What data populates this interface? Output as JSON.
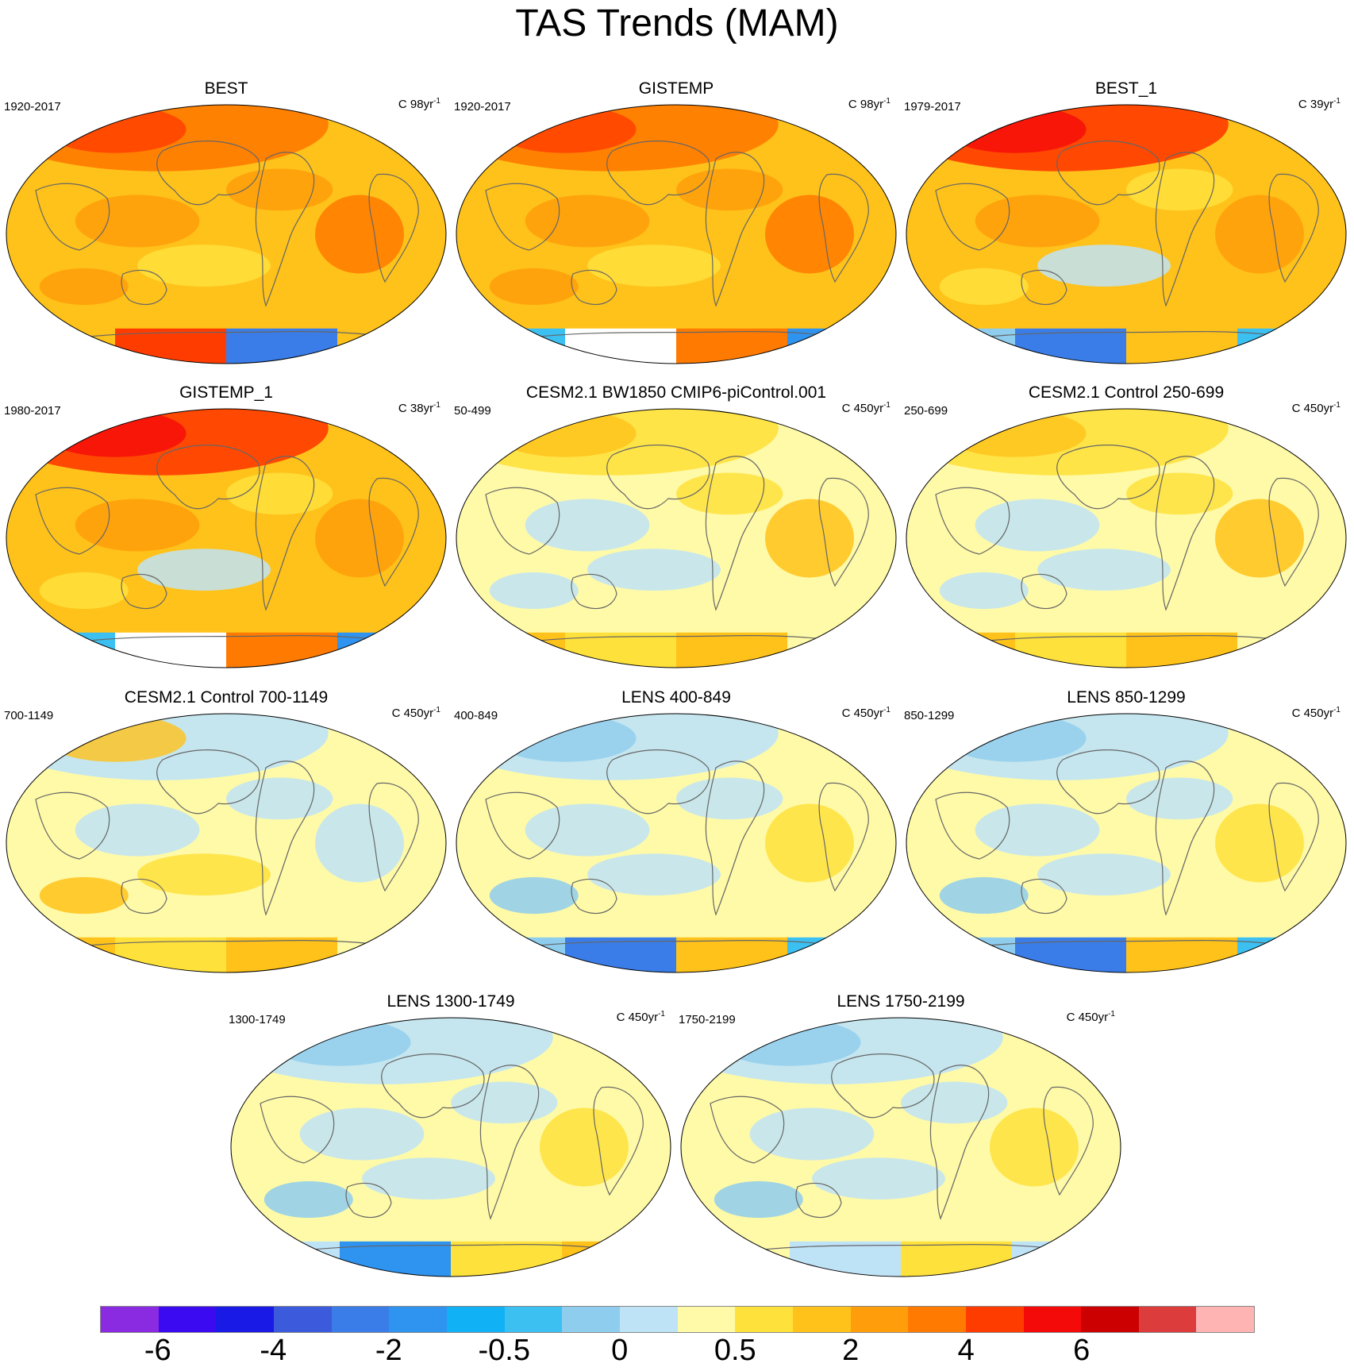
{
  "figure": {
    "title": "TAS Trends (MAM)"
  },
  "chart_data": {
    "type": "map-panels",
    "title": "TAS Trends (MAM)",
    "variable": "TAS",
    "season": "MAM",
    "panels": [
      {
        "id": "best",
        "title": "BEST",
        "period": "1920-2017",
        "units_prefix": "C 98yr",
        "units_exp": "-1",
        "pattern": "strong-warm",
        "antarctic": "mixed-hot"
      },
      {
        "id": "gistemp",
        "title": "GISTEMP",
        "period": "1920-2017",
        "units_prefix": "C 98yr",
        "units_exp": "-1",
        "pattern": "strong-warm",
        "antarctic": "cool-missing"
      },
      {
        "id": "best1",
        "title": "BEST_1",
        "period": "1979-2017",
        "units_prefix": "C 39yr",
        "units_exp": "-1",
        "pattern": "very-warm",
        "antarctic": "cool-band"
      },
      {
        "id": "gist1",
        "title": "GISTEMP_1",
        "period": "1980-2017",
        "units_prefix": "C 38yr",
        "units_exp": "-1",
        "pattern": "very-warm",
        "antarctic": "cool-missing"
      },
      {
        "id": "cesm1",
        "title": "CESM2.1 BW1850 CMIP6-piControl.001",
        "period": "50-499",
        "units_prefix": "C 450yr",
        "units_exp": "-1",
        "pattern": "neutral-warmish",
        "antarctic": "warm-band"
      },
      {
        "id": "cesm2",
        "title": "CESM2.1 Control 250-699",
        "period": "250-699",
        "units_prefix": "C 450yr",
        "units_exp": "-1",
        "pattern": "neutral-warmish",
        "antarctic": "warm-band"
      },
      {
        "id": "cesm3",
        "title": "CESM2.1 Control 700-1149",
        "period": "700-1149",
        "units_prefix": "C 450yr",
        "units_exp": "-1",
        "pattern": "neutral",
        "antarctic": "warm-band"
      },
      {
        "id": "lens1",
        "title": "LENS 400-849",
        "period": "400-849",
        "units_prefix": "C 450yr",
        "units_exp": "-1",
        "pattern": "neutral-cool",
        "antarctic": "cool-band"
      },
      {
        "id": "lens2",
        "title": "LENS 850-1299",
        "period": "850-1299",
        "units_prefix": "C 450yr",
        "units_exp": "-1",
        "pattern": "neutral-cool",
        "antarctic": "cool-band"
      },
      {
        "id": "lens3",
        "title": "LENS 1300-1749",
        "period": "1300-1749",
        "units_prefix": "C 450yr",
        "units_exp": "-1",
        "pattern": "neutral-cool",
        "antarctic": "mixed"
      },
      {
        "id": "lens4",
        "title": "LENS 1750-2199",
        "period": "1750-2199",
        "units_prefix": "C 450yr",
        "units_exp": "-1",
        "pattern": "neutral-cool",
        "antarctic": "neutral"
      }
    ],
    "colorbar": {
      "colors": [
        "#8a2be2",
        "#3b0af0",
        "#1a1ae6",
        "#3b5bdc",
        "#3a7de8",
        "#2f93f0",
        "#10b2f5",
        "#3cc0f2",
        "#8fcdee",
        "#bfe3f6",
        "#fffaa8",
        "#ffe13c",
        "#ffc21a",
        "#ff9e0a",
        "#ff7a00",
        "#ff3c00",
        "#f50a0a",
        "#cc0000",
        "#dc3c3c",
        "#ffb4b4"
      ],
      "tick_labels": [
        "-6",
        "-4",
        "-2",
        "-0.5",
        "0",
        "0.5",
        "2",
        "4",
        "6"
      ],
      "tick_boundaries": [
        1,
        3,
        5,
        7,
        9,
        11,
        13,
        15,
        17
      ]
    }
  }
}
